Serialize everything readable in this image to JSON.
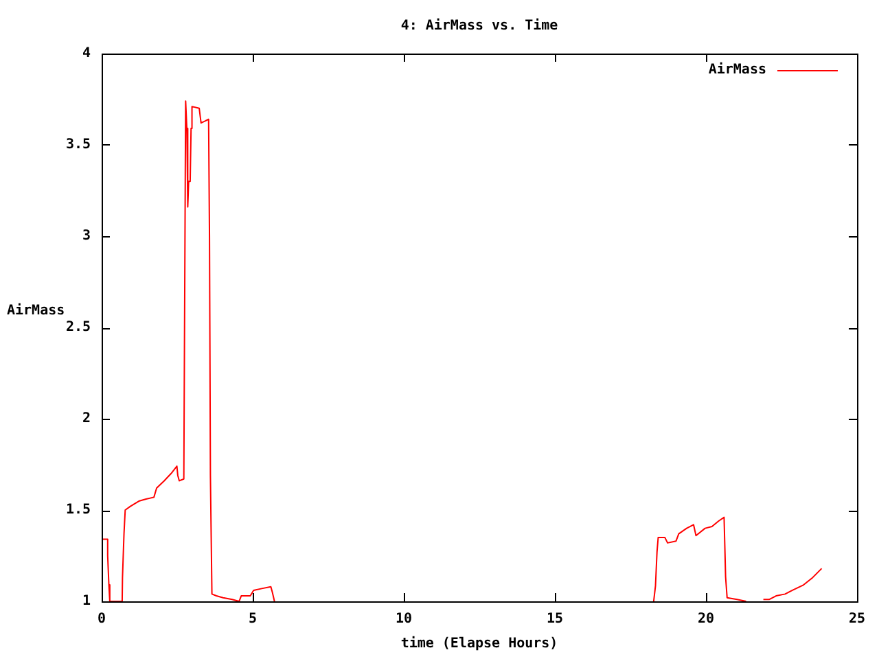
{
  "chart_data": {
    "type": "line",
    "title": "4: AirMass vs. Time",
    "xlabel": "time (Elapse Hours)",
    "ylabel": "AirMass",
    "xlim": [
      0,
      25
    ],
    "xticks": [
      0,
      5,
      10,
      15,
      20,
      25
    ],
    "ylim": [
      1,
      4
    ],
    "yticks": [
      1,
      1.5,
      2,
      2.5,
      3,
      3.5,
      4
    ],
    "grid": false,
    "legend": "top right",
    "marker": "none",
    "line_style": "solid",
    "x": [
      0,
      0.2,
      0.2,
      0.24,
      0.27,
      0.68,
      0.69,
      0.74,
      0.78,
      0.95,
      1.25,
      1.47,
      1.73,
      1.82,
      2.07,
      2.3,
      2.49,
      2.52,
      2.57,
      2.72,
      2.75,
      2.78,
      2.82,
      2.85,
      2.88,
      2.93,
      2.96,
      2.99,
      3.23,
      3.29,
      3.42,
      3.54,
      3.57,
      3.6,
      3.65,
      3.8,
      4.02,
      4.32,
      4.55,
      4.62,
      4.92,
      5.03,
      5.3,
      5.6,
      5.65,
      5.72,
      12,
      18.27,
      18.33,
      18.38,
      18.42,
      18.64,
      18.73,
      19.01,
      19.1,
      19.36,
      19.59,
      19.67,
      19.97,
      20.2,
      20.42,
      20.6,
      20.65,
      20.7,
      21.03,
      21.33,
      21.6,
      21.9,
      22.09,
      22.32,
      22.62,
      22.85,
      23.23,
      23.53,
      23.83
    ],
    "series": [
      {
        "name": "AirMass",
        "color": "#ff0000",
        "values": [
          1.34,
          1.34,
          1.25,
          1.09,
          1.0,
          1.0,
          1.13,
          1.37,
          1.5,
          1.52,
          1.55,
          1.56,
          1.57,
          1.62,
          1.66,
          1.7,
          1.74,
          1.69,
          1.66,
          1.67,
          2.7,
          3.74,
          3.59,
          3.16,
          3.3,
          3.3,
          3.59,
          3.71,
          3.7,
          3.62,
          3.63,
          3.64,
          2.99,
          1.69,
          1.04,
          1.03,
          1.02,
          1.01,
          1.0,
          1.03,
          1.03,
          1.06,
          1.07,
          1.08,
          1.05,
          1.0,
          null,
          1.0,
          1.085,
          1.27,
          1.35,
          1.35,
          1.32,
          1.33,
          1.37,
          1.4,
          1.42,
          1.36,
          1.4,
          1.41,
          1.44,
          1.46,
          1.135,
          1.02,
          1.01,
          1.0,
          null,
          1.01,
          1.01,
          1.03,
          1.04,
          1.06,
          1.09,
          1.13,
          1.18
        ]
      }
    ]
  }
}
